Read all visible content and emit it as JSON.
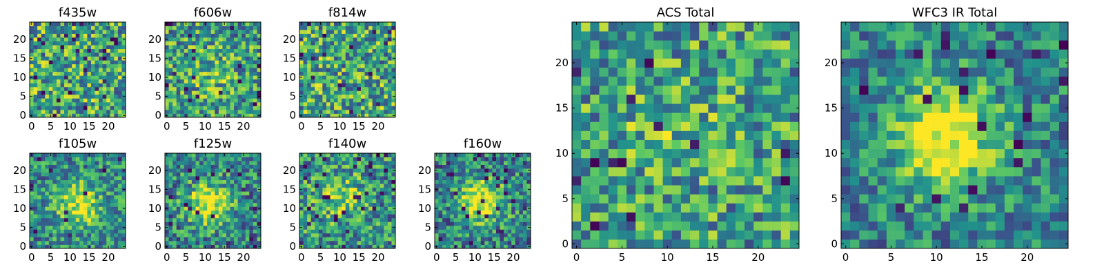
{
  "figure": {
    "colormap": "viridis",
    "colormap_stops": [
      "#440154",
      "#3b528b",
      "#21908d",
      "#5dc963",
      "#fde725"
    ]
  },
  "chart_data": [
    {
      "id": "f435w",
      "type": "heatmap",
      "title": "f435w",
      "grid_size": 25,
      "xlim": [
        0,
        24
      ],
      "ylim": [
        0,
        24
      ],
      "xticks": [
        0,
        5,
        10,
        15,
        20
      ],
      "yticks": [
        0,
        5,
        10,
        15,
        20
      ],
      "grid": false,
      "pattern": "noise",
      "peak_center": null,
      "peak_strength": 0.0,
      "noise_level": 0.38,
      "dark_pixel_fraction": 0.05
    },
    {
      "id": "f606w",
      "type": "heatmap",
      "title": "f606w",
      "grid_size": 25,
      "xlim": [
        0,
        24
      ],
      "ylim": [
        0,
        24
      ],
      "xticks": [
        0,
        5,
        10,
        15,
        20
      ],
      "yticks": [
        0,
        5,
        10,
        15,
        20
      ],
      "grid": false,
      "pattern": "noise",
      "peak_center": [
        11,
        11
      ],
      "peak_strength": 0.15,
      "noise_level": 0.36,
      "dark_pixel_fraction": 0.03
    },
    {
      "id": "f814w",
      "type": "heatmap",
      "title": "f814w",
      "grid_size": 25,
      "xlim": [
        0,
        24
      ],
      "ylim": [
        0,
        24
      ],
      "xticks": [
        0,
        5,
        10,
        15,
        20
      ],
      "yticks": [
        0,
        5,
        10,
        15,
        20
      ],
      "grid": false,
      "pattern": "noise",
      "peak_center": null,
      "peak_strength": 0.0,
      "noise_level": 0.38,
      "dark_pixel_fraction": 0.04
    },
    {
      "id": "f105w",
      "type": "heatmap",
      "title": "f105w",
      "grid_size": 25,
      "xlim": [
        0,
        24
      ],
      "ylim": [
        0,
        24
      ],
      "xticks": [
        0,
        5,
        10,
        15,
        20
      ],
      "yticks": [
        0,
        5,
        10,
        15,
        20
      ],
      "grid": false,
      "pattern": "source",
      "peak_center": [
        12,
        11
      ],
      "peak_strength": 0.45,
      "noise_level": 0.3,
      "dark_pixel_fraction": 0.02
    },
    {
      "id": "f125w",
      "type": "heatmap",
      "title": "f125w",
      "grid_size": 25,
      "xlim": [
        0,
        24
      ],
      "ylim": [
        0,
        24
      ],
      "xticks": [
        0,
        5,
        10,
        15,
        20
      ],
      "yticks": [
        0,
        5,
        10,
        15,
        20
      ],
      "grid": false,
      "pattern": "source",
      "peak_center": [
        11,
        11
      ],
      "peak_strength": 0.55,
      "noise_level": 0.32,
      "dark_pixel_fraction": 0.03
    },
    {
      "id": "f140w",
      "type": "heatmap",
      "title": "f140w",
      "grid_size": 25,
      "xlim": [
        0,
        24
      ],
      "ylim": [
        0,
        24
      ],
      "xticks": [
        0,
        5,
        10,
        15,
        20
      ],
      "yticks": [
        0,
        5,
        10,
        15,
        20
      ],
      "grid": false,
      "pattern": "source",
      "peak_center": [
        10,
        13
      ],
      "peak_strength": 0.35,
      "noise_level": 0.34,
      "dark_pixel_fraction": 0.04
    },
    {
      "id": "f160w",
      "type": "heatmap",
      "title": "f160w",
      "grid_size": 25,
      "xlim": [
        0,
        24
      ],
      "ylim": [
        0,
        24
      ],
      "xticks": [
        0,
        5,
        10,
        15,
        20
      ],
      "yticks": [
        0,
        5,
        10,
        15,
        20
      ],
      "grid": false,
      "pattern": "source",
      "peak_center": [
        12,
        12
      ],
      "peak_strength": 0.6,
      "noise_level": 0.32,
      "dark_pixel_fraction": 0.04
    },
    {
      "id": "acs_total",
      "type": "heatmap",
      "title": "ACS Total",
      "grid_size": 25,
      "xlim": [
        0,
        24
      ],
      "ylim": [
        0,
        24
      ],
      "xticks": [
        0,
        5,
        10,
        15,
        20
      ],
      "yticks": [
        0,
        5,
        10,
        15,
        20
      ],
      "grid": false,
      "pattern": "noise",
      "peak_center": [
        10,
        13
      ],
      "peak_strength": 0.12,
      "noise_level": 0.34,
      "dark_pixel_fraction": 0.03
    },
    {
      "id": "wfc3_ir_total",
      "type": "heatmap",
      "title": "WFC3 IR Total",
      "grid_size": 25,
      "xlim": [
        0,
        24
      ],
      "ylim": [
        0,
        24
      ],
      "xticks": [
        0,
        5,
        10,
        15,
        20
      ],
      "yticks": [
        0,
        5,
        10,
        15,
        20
      ],
      "grid": false,
      "pattern": "source",
      "peak_center": [
        11,
        12
      ],
      "peak_strength": 0.6,
      "noise_level": 0.26,
      "dark_pixel_fraction": 0.04
    }
  ]
}
